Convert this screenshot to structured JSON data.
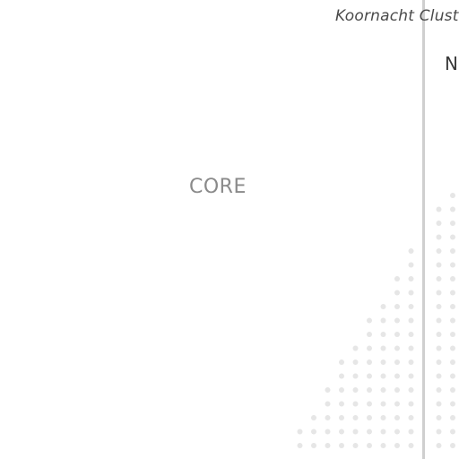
{
  "header": {
    "cluster_label": "Koornacht Cluster"
  },
  "right_panel": {
    "edge_label": "N"
  },
  "main": {
    "core_label": "CORE"
  },
  "colors": {
    "dot": "#e6e6e6",
    "divider": "#cfcfcf",
    "core_text": "#8a8a8a"
  }
}
